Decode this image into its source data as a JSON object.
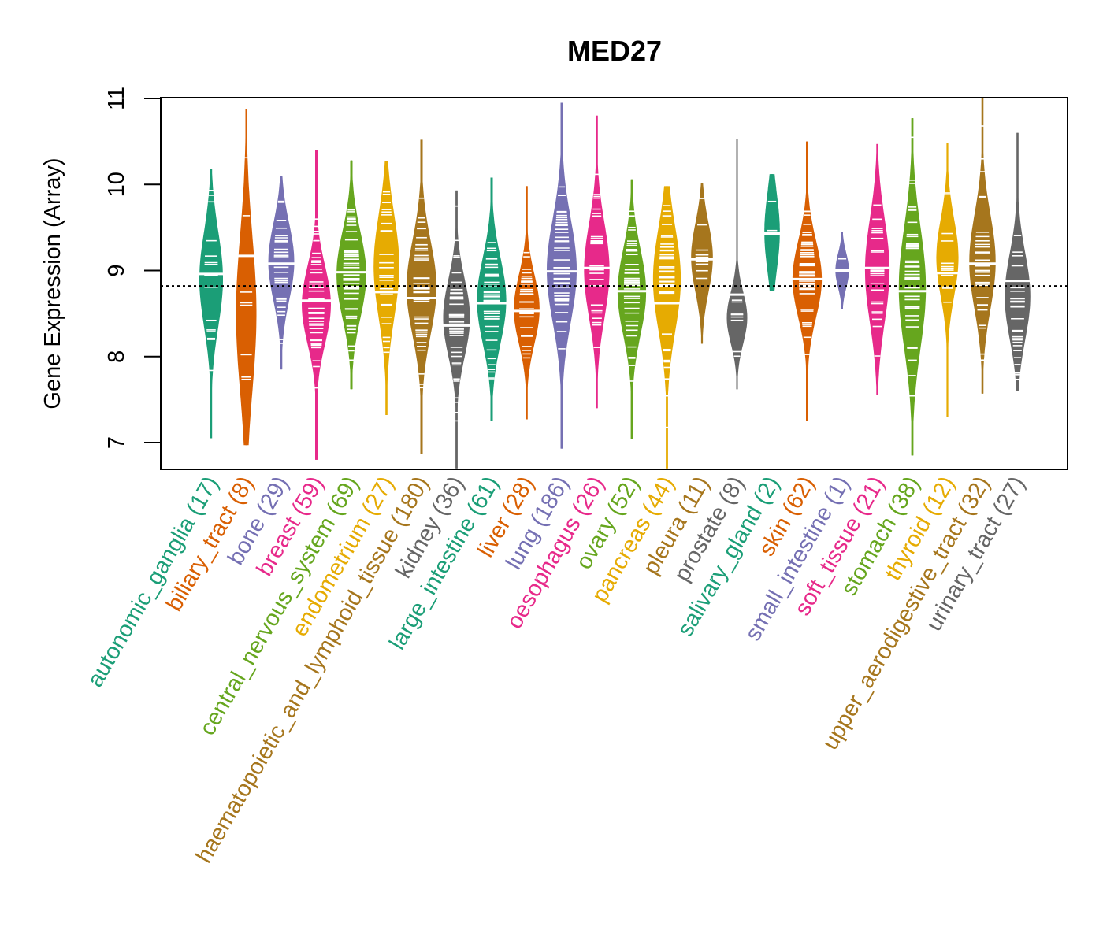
{
  "chart_data": {
    "type": "violin",
    "title": "MED27",
    "xlabel": "",
    "ylabel": "Gene Expression (Array)",
    "ylim": [
      6.7,
      11.0
    ],
    "yticks": [
      7,
      8,
      9,
      10,
      11
    ],
    "reference_line": 8.82,
    "grid": false,
    "legend": "none",
    "palette": [
      "#1B9E77",
      "#D95F02",
      "#7570B3",
      "#E7298A",
      "#66A61E",
      "#E6AB02",
      "#A6761D",
      "#666666"
    ],
    "categories": [
      {
        "name": "autonomic_ganglia",
        "n": 17,
        "label": "autonomic_ganglia (17)",
        "color": "#1B9E77",
        "min": 7.05,
        "max": 10.18,
        "median": 8.96,
        "mode": 8.9,
        "spread": 0.55
      },
      {
        "name": "biliary_tract",
        "n": 8,
        "label": "biliary_tract (8)",
        "color": "#D95F02",
        "min": 6.97,
        "max": 10.88,
        "median": 9.17,
        "mode": 8.5,
        "spread": 0.9
      },
      {
        "name": "bone",
        "n": 29,
        "label": "bone (29)",
        "color": "#7570B3",
        "min": 7.85,
        "max": 10.1,
        "median": 9.08,
        "mode": 9.1,
        "spread": 0.45
      },
      {
        "name": "breast",
        "n": 59,
        "label": "breast (59)",
        "color": "#E7298A",
        "min": 6.8,
        "max": 10.4,
        "median": 8.65,
        "mode": 8.6,
        "spread": 0.45
      },
      {
        "name": "central_nervous_system",
        "n": 69,
        "label": "central_nervous_system (69)",
        "color": "#66A61E",
        "min": 7.62,
        "max": 10.28,
        "median": 8.98,
        "mode": 8.95,
        "spread": 0.5
      },
      {
        "name": "endometrium",
        "n": 27,
        "label": "endometrium (27)",
        "color": "#E6AB02",
        "min": 7.32,
        "max": 10.27,
        "median": 8.75,
        "mode": 9.05,
        "spread": 0.6
      },
      {
        "name": "haematopoietic_and_lymphoid_tissue",
        "n": 180,
        "label": "haematopoietic_and_lymphoid_tissue (180)",
        "color": "#A6761D",
        "min": 6.87,
        "max": 10.52,
        "median": 8.68,
        "mode": 8.8,
        "spread": 0.55
      },
      {
        "name": "kidney",
        "n": 36,
        "label": "kidney (36)",
        "color": "#666666",
        "min": 6.7,
        "max": 9.93,
        "median": 8.36,
        "mode": 8.45,
        "spread": 0.45
      },
      {
        "name": "large_intestine",
        "n": 61,
        "label": "large_intestine (61)",
        "color": "#1B9E77",
        "min": 7.25,
        "max": 10.08,
        "median": 8.62,
        "mode": 8.65,
        "spread": 0.5
      },
      {
        "name": "liver",
        "n": 28,
        "label": "liver (28)",
        "color": "#D95F02",
        "min": 7.27,
        "max": 9.98,
        "median": 8.53,
        "mode": 8.55,
        "spread": 0.4
      },
      {
        "name": "lung",
        "n": 186,
        "label": "lung (186)",
        "color": "#7570B3",
        "min": 6.93,
        "max": 10.95,
        "median": 8.99,
        "mode": 9.0,
        "spread": 0.6
      },
      {
        "name": "oesophagus",
        "n": 26,
        "label": "oesophagus (26)",
        "color": "#E7298A",
        "min": 7.4,
        "max": 10.8,
        "median": 9.03,
        "mode": 9.0,
        "spread": 0.55
      },
      {
        "name": "ovary",
        "n": 52,
        "label": "ovary (52)",
        "color": "#66A61E",
        "min": 7.04,
        "max": 10.06,
        "median": 8.76,
        "mode": 8.75,
        "spread": 0.5
      },
      {
        "name": "pancreas",
        "n": 44,
        "label": "pancreas (44)",
        "color": "#E6AB02",
        "min": 6.7,
        "max": 9.98,
        "median": 8.62,
        "mode": 8.9,
        "spread": 0.6
      },
      {
        "name": "pleura",
        "n": 11,
        "label": "pleura (11)",
        "color": "#A6761D",
        "min": 8.15,
        "max": 10.02,
        "median": 9.13,
        "mode": 9.15,
        "spread": 0.4
      },
      {
        "name": "prostate",
        "n": 8,
        "label": "prostate (8)",
        "color": "#666666",
        "min": 7.62,
        "max": 10.53,
        "median": 8.72,
        "mode": 8.45,
        "spread": 0.3
      },
      {
        "name": "salivary_gland",
        "n": 2,
        "label": "salivary_gland (2)",
        "color": "#1B9E77",
        "min": 8.76,
        "max": 10.12,
        "median": 9.43,
        "mode": 9.45,
        "spread": 0.45
      },
      {
        "name": "skin",
        "n": 62,
        "label": "skin (62)",
        "color": "#D95F02",
        "min": 7.25,
        "max": 10.5,
        "median": 8.9,
        "mode": 8.9,
        "spread": 0.45
      },
      {
        "name": "small_intestine",
        "n": 1,
        "label": "small_intestine (1)",
        "color": "#7570B3",
        "min": 8.55,
        "max": 9.45,
        "median": 9.0,
        "mode": 9.0,
        "spread": 0.2
      },
      {
        "name": "soft_tissue",
        "n": 21,
        "label": "soft_tissue (21)",
        "color": "#E7298A",
        "min": 7.55,
        "max": 10.47,
        "median": 9.03,
        "mode": 9.0,
        "spread": 0.6
      },
      {
        "name": "stomach",
        "n": 38,
        "label": "stomach (38)",
        "color": "#66A61E",
        "min": 6.85,
        "max": 10.77,
        "median": 8.76,
        "mode": 8.8,
        "spread": 0.7
      },
      {
        "name": "thyroid",
        "n": 12,
        "label": "thyroid (12)",
        "color": "#E6AB02",
        "min": 7.3,
        "max": 10.48,
        "median": 8.97,
        "mode": 9.15,
        "spread": 0.45
      },
      {
        "name": "upper_aerodigestive_tract",
        "n": 32,
        "label": "upper_aerodigestive_tract (32)",
        "color": "#A6761D",
        "min": 7.57,
        "max": 11.0,
        "median": 9.08,
        "mode": 9.1,
        "spread": 0.55
      },
      {
        "name": "urinary_tract",
        "n": 27,
        "label": "urinary_tract (27)",
        "color": "#666666",
        "min": 7.6,
        "max": 10.6,
        "median": 8.88,
        "mode": 8.7,
        "spread": 0.5
      }
    ]
  }
}
